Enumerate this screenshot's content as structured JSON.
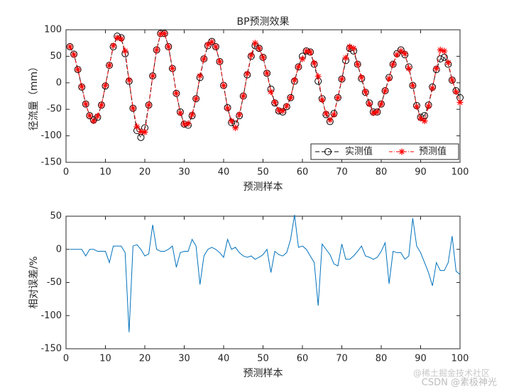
{
  "chart_data": [
    {
      "type": "line",
      "title": "BP预测效果",
      "x_label": "预测样本",
      "y_label": "径流量（mm）",
      "x": [
        1,
        2,
        3,
        4,
        5,
        6,
        7,
        8,
        9,
        10,
        11,
        12,
        13,
        14,
        15,
        16,
        17,
        18,
        19,
        20,
        21,
        22,
        23,
        24,
        25,
        26,
        27,
        28,
        29,
        30,
        31,
        32,
        33,
        34,
        35,
        36,
        37,
        38,
        39,
        40,
        41,
        42,
        43,
        44,
        45,
        46,
        47,
        48,
        49,
        50,
        51,
        52,
        53,
        54,
        55,
        56,
        57,
        58,
        59,
        60,
        61,
        62,
        63,
        64,
        65,
        66,
        67,
        68,
        69,
        70,
        71,
        72,
        73,
        74,
        75,
        76,
        77,
        78,
        79,
        80,
        81,
        82,
        83,
        84,
        85,
        86,
        87,
        88,
        89,
        90,
        91,
        92,
        93,
        94,
        95,
        96,
        97,
        98,
        99,
        100
      ],
      "series": [
        {
          "name": "实测值",
          "color": "#000000",
          "marker": "o",
          "dash": "6,3",
          "values": [
            68,
            54,
            25,
            -8,
            -40,
            -62,
            -70,
            -65,
            -42,
            -6,
            33,
            68,
            88,
            85,
            55,
            3,
            -48,
            -90,
            -103,
            -85,
            -42,
            13,
            62,
            93,
            93,
            68,
            27,
            -20,
            -55,
            -78,
            -80,
            -62,
            -30,
            10,
            45,
            70,
            78,
            68,
            40,
            -5,
            -47,
            -75,
            -78,
            -62,
            -25,
            15,
            50,
            70,
            65,
            48,
            18,
            -12,
            -38,
            -53,
            -55,
            -45,
            -28,
            3,
            30,
            50,
            60,
            58,
            35,
            3,
            -30,
            -60,
            -73,
            -58,
            -28,
            7,
            42,
            65,
            60,
            35,
            8,
            -18,
            -38,
            -55,
            -55,
            -40,
            -15,
            10,
            35,
            55,
            62,
            53,
            30,
            -5,
            -43,
            -65,
            -62,
            -42,
            -8,
            25,
            45,
            48,
            35,
            5,
            -15,
            -28
          ]
        },
        {
          "name": "预测值",
          "color": "#ff0000",
          "marker": "*",
          "dash": "5,2,1,2",
          "values": [
            68,
            53,
            25,
            -7,
            -40,
            -62,
            -72,
            -63,
            -42,
            -5,
            33,
            70,
            85,
            83,
            60,
            5,
            -48,
            -83,
            -92,
            -93,
            -42,
            13,
            62,
            92,
            93,
            68,
            27,
            -20,
            -57,
            -78,
            -77,
            -60,
            -30,
            13,
            45,
            72,
            77,
            68,
            40,
            -5,
            -48,
            -72,
            -85,
            -60,
            -25,
            17,
            52,
            75,
            65,
            48,
            18,
            -17,
            -37,
            -52,
            -53,
            -44,
            -28,
            5,
            30,
            45,
            60,
            58,
            37,
            12,
            -32,
            -58,
            -70,
            -60,
            -28,
            7,
            47,
            68,
            65,
            35,
            10,
            -17,
            -40,
            -57,
            -55,
            -40,
            -15,
            8,
            35,
            53,
            60,
            55,
            27,
            -5,
            -45,
            -67,
            -72,
            -44,
            -10,
            27,
            62,
            60,
            38,
            5,
            -17,
            -37
          ]
        }
      ],
      "xlim": [
        0,
        100
      ],
      "xticks": [
        0,
        10,
        20,
        30,
        40,
        50,
        60,
        70,
        80,
        90,
        100
      ],
      "ylim": [
        -150,
        100
      ],
      "yticks": [
        -150,
        -100,
        -50,
        0,
        50,
        100
      ],
      "legend": "southeast"
    },
    {
      "type": "line",
      "x_label": "预测样本",
      "y_label": "相对误差/%",
      "x": [
        1,
        2,
        3,
        4,
        5,
        6,
        7,
        8,
        9,
        10,
        11,
        12,
        13,
        14,
        15,
        16,
        17,
        18,
        19,
        20,
        21,
        22,
        23,
        24,
        25,
        26,
        27,
        28,
        29,
        30,
        31,
        32,
        33,
        34,
        35,
        36,
        37,
        38,
        39,
        40,
        41,
        42,
        43,
        44,
        45,
        46,
        47,
        48,
        49,
        50,
        51,
        52,
        53,
        54,
        55,
        56,
        57,
        58,
        59,
        60,
        61,
        62,
        63,
        64,
        65,
        66,
        67,
        68,
        69,
        70,
        71,
        72,
        73,
        74,
        75,
        76,
        77,
        78,
        79,
        80,
        81,
        82,
        83,
        84,
        85,
        86,
        87,
        88,
        89,
        90,
        91,
        92,
        93,
        94,
        95,
        96,
        97,
        98,
        99,
        100
      ],
      "series": [
        {
          "color": "#0072bd",
          "values": [
            0,
            0,
            0,
            0,
            -10,
            0,
            0,
            -3,
            -3,
            -3,
            -20,
            5,
            5,
            5,
            -5,
            -125,
            5,
            7,
            0,
            -10,
            -7,
            37,
            0,
            -3,
            -3,
            0,
            5,
            -27,
            -5,
            -3,
            -3,
            15,
            5,
            -53,
            -10,
            0,
            3,
            0,
            -5,
            -12,
            15,
            0,
            3,
            -5,
            -10,
            -12,
            -10,
            -15,
            -12,
            -8,
            0,
            -35,
            -3,
            -8,
            -10,
            -5,
            15,
            52,
            3,
            5,
            0,
            -10,
            -20,
            -85,
            8,
            0,
            -8,
            -22,
            -25,
            8,
            -15,
            -15,
            -10,
            -3,
            5,
            -10,
            -12,
            -15,
            -12,
            -3,
            10,
            -52,
            -3,
            -5,
            -5,
            -15,
            -10,
            47,
            5,
            -5,
            -20,
            -35,
            -55,
            -20,
            -32,
            -32,
            -20,
            20,
            -33,
            -38
          ]
        }
      ],
      "xlim": [
        0,
        100
      ],
      "xticks": [
        0,
        10,
        20,
        30,
        40,
        50,
        60,
        70,
        80,
        90,
        100
      ],
      "ylim": [
        -150,
        50
      ],
      "yticks": [
        -150,
        -100,
        -50,
        0,
        50
      ]
    }
  ],
  "watermark": [
    "@稀土掘金技术社区",
    "CSDN @素极神光"
  ]
}
